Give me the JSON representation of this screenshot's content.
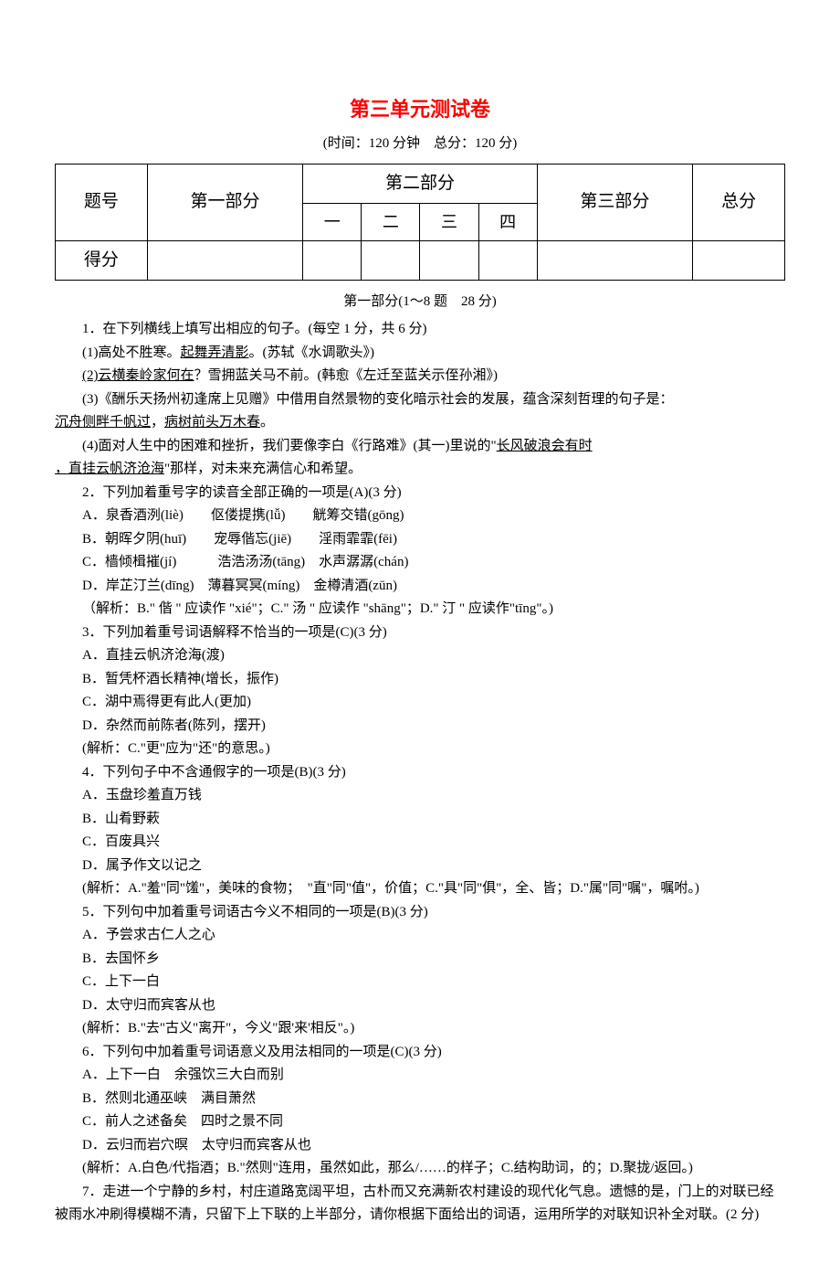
{
  "title": "第三单元测试卷",
  "time_info": "(时间：120 分钟　总分：120 分)",
  "table": {
    "row1_col1": "题号",
    "row1_col2": "第一部分",
    "row1_col3": "第二部分",
    "row1_col4": "第三部分",
    "row1_col5": "总分",
    "row2_col1": "一",
    "row2_col2": "二",
    "row2_col3": "三",
    "row2_col4": "四",
    "row3_col1": "得分"
  },
  "section1_header": "第一部分(1～8 题　28 分)",
  "q1": {
    "stem": "1．在下列横线上填写出相应的句子。(每空 1 分，共 6 分)",
    "sub1_before": "(1)高处不胜寒。",
    "sub1_answer": "起舞弄清影",
    "sub1_after": "。(苏轼《水调歌头》)",
    "sub2_answer": "(2)云横秦岭家何在",
    "sub2_after": "？雪拥蓝关马不前。(韩愈《左迁至蓝关示侄孙湘》)",
    "sub3_before": "(3)《酬乐天扬州初逢席上见赠》中借用自然景物的变化暗示社会的发展，蕴含深刻哲理的句子是：",
    "sub3_answer1": "沉舟侧畔千帆过",
    "sub3_comma": "，",
    "sub3_answer2": "病树前头万木春",
    "sub3_after": "。",
    "sub4_before": "(4)面对人生中的困难和挫折，我们要像李白《行路难》(其一)里说的\"",
    "sub4_answer1": "长风破浪会有时",
    "sub4_comma": "，",
    "sub4_answer2": "直挂云帆济沧海",
    "sub4_after": "\"那样，对未来充满信心和希望。"
  },
  "q2": {
    "stem": "2．下列加着重号字的读音全部正确的一项是(A)(3 分)",
    "optA": "A．泉香酒洌(liè)　　伛偻提携(lǚ)　　觥筹交错(gōng)",
    "optB": "B．朝晖夕阴(huī)　　宠辱偕忘(jiē)　　淫雨霏霏(fēi)",
    "optC": "C．樯倾楫摧(jí)　　　浩浩汤汤(tāng)　水声潺潺(chán)",
    "optD": "D．岸芷汀兰(dīng)　薄暮冥冥(míng)　金樽清酒(zūn)",
    "expl": "（解析：B.\" 偕 \" 应读作 \"xié\"；C.\" 汤 \" 应读作 \"shāng\"；D.\" 汀 \" 应读作\"tīng\"。)"
  },
  "q3": {
    "stem": "3．下列加着重号词语解释不恰当的一项是(C)(3 分)",
    "optA": "A．直挂云帆济沧海(渡)",
    "optB": "B．暂凭杯酒长精神(增长，振作)",
    "optC": "C．湖中焉得更有此人(更加)",
    "optD": "D．杂然而前陈者(陈列，摆开)",
    "expl": "(解析：C.\"更\"应为\"还\"的意思。)"
  },
  "q4": {
    "stem": "4．下列句子中不含通假字的一项是(B)(3 分)",
    "optA": "A．玉盘珍羞直万钱",
    "optB": "B．山肴野蔌",
    "optC": "C．百废具兴",
    "optD": "D．属予作文以记之",
    "expl": "(解析：A.\"羞\"同\"馐\"，美味的食物；　\"直\"同\"值\"，价值；C.\"具\"同\"俱\"，全、皆；D.\"属\"同\"嘱\"，嘱咐。)"
  },
  "q5": {
    "stem": "5．下列句中加着重号词语古今义不相同的一项是(B)(3 分)",
    "optA": "A．予尝求古仁人之心",
    "optB": "B．去国怀乡",
    "optC": "C．上下一白",
    "optD": "D．太守归而宾客从也",
    "expl": "(解析：B.\"去\"古义\"离开\"，今义\"跟'来'相反\"。)"
  },
  "q6": {
    "stem": "6．下列句中加着重号词语意义及用法相同的一项是(C)(3 分)",
    "optA": "A．上下一白　余强饮三大白而别",
    "optB": "B．然则北通巫峡　满目萧然",
    "optC": "C．前人之述备矣　四时之景不同",
    "optD": "D．云归而岩穴暝　太守归而宾客从也",
    "expl": "(解析：A.白色/代指酒；B.\"然则\"连用，虽然如此，那么/……的样子；C.结构助词，的；D.聚拢/返回。)"
  },
  "q7": {
    "stem": "7．走进一个宁静的乡村，村庄道路宽阔平坦，古朴而又充满新农村建设的现代化气息。遗憾的是，门上的对联已经被雨水冲刷得模糊不清，只留下上下联的上半部分，请你根据下面给出的词语，运用所学的对联知识补全对联。(2 分)"
  },
  "colors": {
    "title_color": "#ff0000",
    "text_color": "#000000",
    "background": "#ffffff",
    "border_color": "#000000"
  }
}
